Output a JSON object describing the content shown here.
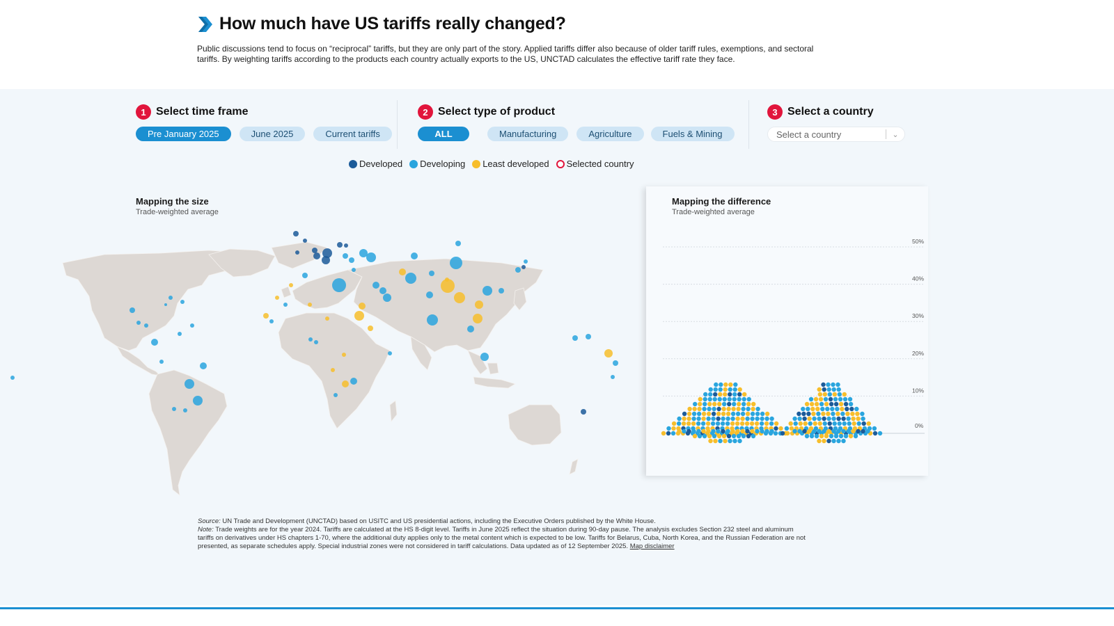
{
  "title": "How much have US tariffs really changed?",
  "intro": "Public discussions tend to focus on “reciprocal” tariffs, but they are only part of the story. Applied tariffs differ also because of older tariff rules, exemptions, and sectoral tariffs. By weighting tariffs according to the products each country actually exports to the US, UNCTAD calculates the effective tariff rate they face.",
  "steps": [
    {
      "num": "1",
      "label": "Select time frame"
    },
    {
      "num": "2",
      "label": "Select type of product"
    },
    {
      "num": "3",
      "label": "Select a country"
    }
  ],
  "time_options": [
    "Pre January 2025",
    "June 2025",
    "Current tariffs"
  ],
  "time_selected": "Pre January 2025",
  "product_options": [
    "ALL",
    "Manufacturing",
    "Agriculture",
    "Fuels & Mining"
  ],
  "product_selected": "ALL",
  "country_select": {
    "value": "Select a country"
  },
  "legend": [
    {
      "label": "Developed",
      "color": "#1c5b99"
    },
    {
      "label": "Developing",
      "color": "#2aa5de"
    },
    {
      "label": "Least developed",
      "color": "#f7be2c"
    },
    {
      "label": "Selected country",
      "color": "#e1153c"
    }
  ],
  "map": {
    "title": "Mapping the size",
    "subtitle": "Trade-weighted average"
  },
  "diff": {
    "title": "Mapping the difference",
    "subtitle": "Trade-weighted average"
  },
  "chart_data": {
    "type": "scatter",
    "title": "Mapping the difference",
    "subtitle": "Trade-weighted average",
    "y_ticks": [
      "50%",
      "40%",
      "30%",
      "20%",
      "10%",
      "0%"
    ],
    "ylim": [
      0,
      50
    ],
    "grid": true
  },
  "footer": {
    "source_label": "Source:",
    "source": "UN Trade and Development (UNCTAD) based on USITC and US presidential actions, including the Executive Orders published by the White House.",
    "note_label": "Note:",
    "note": "Trade weights are for the year 2024. Tariffs are calculated at the HS 8-digit level. Tariffs in June 2025 reflect the situation during 90-day pause. The analysis excludes Section 232 steel and aluminum tariffs on derivatives under HS chapters 1-70, where the additional duty applies only to the metal content which is expected to be low. Tariffs for Belarus, Cuba, North Korea, and the Russian Federation are not presented, as separate schedules apply. Special industrial zones were not considered in tariff calculations. Data updated as of 12 September 2025.",
    "disclaimer": "Map disclaimer"
  }
}
